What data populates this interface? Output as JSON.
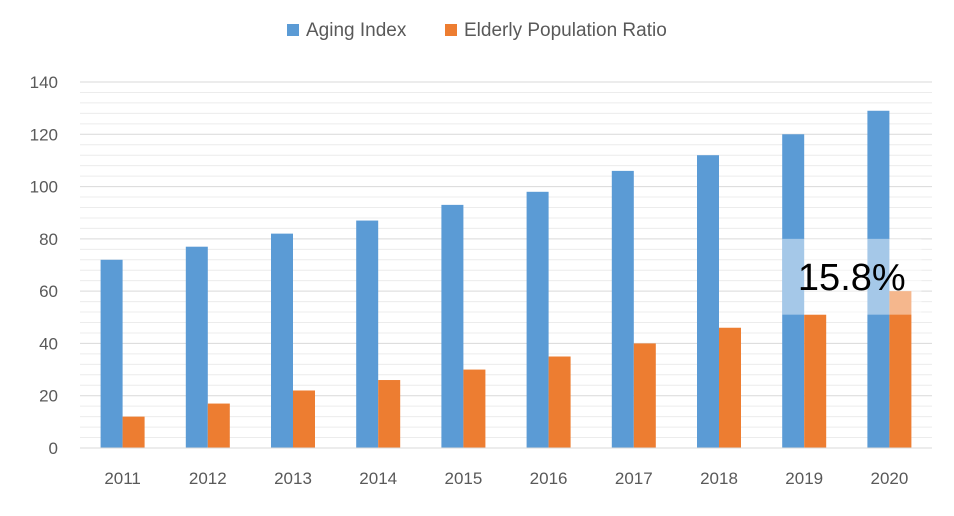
{
  "chart_data": {
    "type": "bar",
    "categories": [
      "2011",
      "2012",
      "2013",
      "2014",
      "2015",
      "2016",
      "2017",
      "2018",
      "2019",
      "2020"
    ],
    "series": [
      {
        "name": "Aging Index",
        "color": "#5B9BD5",
        "values": [
          72,
          77,
          82,
          87,
          93,
          98,
          106,
          112,
          120,
          129
        ]
      },
      {
        "name": "Elderly Population Ratio",
        "color": "#ED7D31",
        "values": [
          12,
          17,
          22,
          26,
          30,
          35,
          40,
          46,
          51,
          60
        ]
      }
    ],
    "ylim": [
      0,
      140
    ],
    "yticks": [
      0,
      20,
      40,
      60,
      80,
      100,
      120,
      140
    ],
    "grid": true,
    "legend_position": "top-center",
    "annotation": {
      "text": "15.8%",
      "color": "#FFFFFF"
    }
  }
}
